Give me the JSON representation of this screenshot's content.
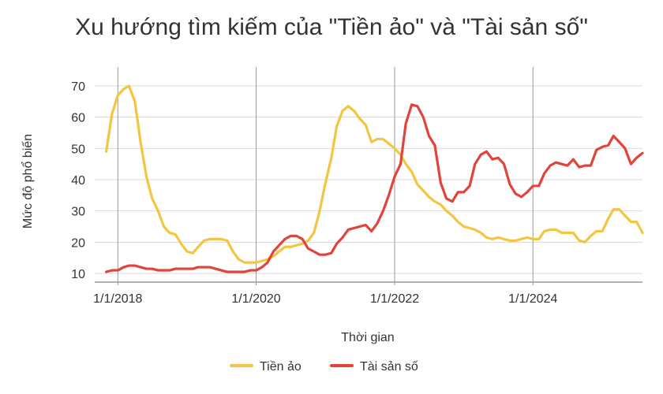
{
  "chart_data": {
    "type": "line",
    "title": "Xu hướng tìm kiếm của \"Tiền ảo\" và \"Tài sản số\"",
    "xlabel": "Thời gian",
    "ylabel": "Mức độ phổ biến",
    "ylim": [
      10,
      70
    ],
    "yticks": [
      "10",
      "20",
      "30",
      "40",
      "50",
      "60",
      "70"
    ],
    "xticks": [
      "1/1/2018",
      "1/1/2020",
      "1/1/2022",
      "1/1/2024"
    ],
    "grid": "horizontal",
    "legend": "bottom",
    "series": [
      {
        "name": "Tiền ảo",
        "color": "#F4C542",
        "points": [
          [
            "2017-11-01",
            49
          ],
          [
            "2017-12-01",
            61
          ],
          [
            "2018-01-01",
            67
          ],
          [
            "2018-02-01",
            69
          ],
          [
            "2018-03-01",
            70
          ],
          [
            "2018-04-01",
            65
          ],
          [
            "2018-05-01",
            52
          ],
          [
            "2018-06-01",
            41
          ],
          [
            "2018-07-01",
            34
          ],
          [
            "2018-08-01",
            30
          ],
          [
            "2018-09-01",
            25
          ],
          [
            "2018-10-01",
            23
          ],
          [
            "2018-11-01",
            22.5
          ],
          [
            "2018-12-01",
            19.5
          ],
          [
            "2019-01-01",
            17
          ],
          [
            "2019-02-01",
            16.5
          ],
          [
            "2019-03-01",
            18.5
          ],
          [
            "2019-04-01",
            20.5
          ],
          [
            "2019-05-01",
            21
          ],
          [
            "2019-06-01",
            21
          ],
          [
            "2019-07-01",
            21
          ],
          [
            "2019-08-01",
            20.5
          ],
          [
            "2019-09-01",
            17
          ],
          [
            "2019-10-01",
            14.5
          ],
          [
            "2019-11-01",
            13.5
          ],
          [
            "2019-12-01",
            13.5
          ],
          [
            "2020-01-01",
            13.5
          ],
          [
            "2020-02-01",
            14
          ],
          [
            "2020-03-01",
            14.5
          ],
          [
            "2020-04-01",
            15.5
          ],
          [
            "2020-05-01",
            17
          ],
          [
            "2020-06-01",
            18.5
          ],
          [
            "2020-07-01",
            18.5
          ],
          [
            "2020-08-01",
            19
          ],
          [
            "2020-09-01",
            19.5
          ],
          [
            "2020-10-01",
            20.5
          ],
          [
            "2020-11-01",
            23
          ],
          [
            "2020-12-01",
            30
          ],
          [
            "2021-01-01",
            39
          ],
          [
            "2021-02-01",
            47
          ],
          [
            "2021-03-01",
            57
          ],
          [
            "2021-04-01",
            62
          ],
          [
            "2021-05-01",
            63.5
          ],
          [
            "2021-06-01",
            62
          ],
          [
            "2021-07-01",
            59.5
          ],
          [
            "2021-08-01",
            57.5
          ],
          [
            "2021-09-01",
            52
          ],
          [
            "2021-10-01",
            53
          ],
          [
            "2021-11-01",
            53
          ],
          [
            "2021-12-01",
            51.5
          ],
          [
            "2022-01-01",
            50
          ],
          [
            "2022-02-01",
            48
          ],
          [
            "2022-03-01",
            45
          ],
          [
            "2022-04-01",
            42.5
          ],
          [
            "2022-05-01",
            38.5
          ],
          [
            "2022-06-01",
            36.5
          ],
          [
            "2022-07-01",
            34.5
          ],
          [
            "2022-08-01",
            33
          ],
          [
            "2022-09-01",
            32
          ],
          [
            "2022-10-01",
            30
          ],
          [
            "2022-11-01",
            28.5
          ],
          [
            "2022-12-01",
            26.5
          ],
          [
            "2023-01-01",
            25
          ],
          [
            "2023-02-01",
            24.5
          ],
          [
            "2023-03-01",
            24
          ],
          [
            "2023-04-01",
            23
          ],
          [
            "2023-05-01",
            21.5
          ],
          [
            "2023-06-01",
            21
          ],
          [
            "2023-07-01",
            21.5
          ],
          [
            "2023-08-01",
            21
          ],
          [
            "2023-09-01",
            20.5
          ],
          [
            "2023-10-01",
            20.5
          ],
          [
            "2023-11-01",
            21
          ],
          [
            "2023-12-01",
            21.5
          ],
          [
            "2024-01-01",
            21
          ],
          [
            "2024-02-01",
            21
          ],
          [
            "2024-03-01",
            23.5
          ],
          [
            "2024-04-01",
            24
          ],
          [
            "2024-05-01",
            24
          ],
          [
            "2024-06-01",
            23
          ],
          [
            "2024-07-01",
            23
          ],
          [
            "2024-08-01",
            23
          ],
          [
            "2024-09-01",
            20.5
          ],
          [
            "2024-10-01",
            20
          ],
          [
            "2024-11-01",
            22
          ],
          [
            "2024-12-01",
            23.5
          ],
          [
            "2025-01-01",
            23.5
          ],
          [
            "2025-02-01",
            27.5
          ],
          [
            "2025-03-01",
            30.5
          ],
          [
            "2025-04-01",
            30.5
          ],
          [
            "2025-05-01",
            28.5
          ],
          [
            "2025-06-01",
            26.5
          ],
          [
            "2025-07-01",
            26.5
          ],
          [
            "2025-08-01",
            23
          ]
        ]
      },
      {
        "name": "Tài sản số",
        "color": "#E0443A",
        "points": [
          [
            "2017-11-01",
            10.5
          ],
          [
            "2017-12-01",
            11
          ],
          [
            "2018-01-01",
            11
          ],
          [
            "2018-02-01",
            12
          ],
          [
            "2018-03-01",
            12.5
          ],
          [
            "2018-04-01",
            12.5
          ],
          [
            "2018-05-01",
            12
          ],
          [
            "2018-06-01",
            11.5
          ],
          [
            "2018-07-01",
            11.5
          ],
          [
            "2018-08-01",
            11
          ],
          [
            "2018-09-01",
            11
          ],
          [
            "2018-10-01",
            11
          ],
          [
            "2018-11-01",
            11.5
          ],
          [
            "2018-12-01",
            11.5
          ],
          [
            "2019-01-01",
            11.5
          ],
          [
            "2019-02-01",
            11.5
          ],
          [
            "2019-03-01",
            12
          ],
          [
            "2019-04-01",
            12
          ],
          [
            "2019-05-01",
            12
          ],
          [
            "2019-06-01",
            11.5
          ],
          [
            "2019-07-01",
            11
          ],
          [
            "2019-08-01",
            10.5
          ],
          [
            "2019-09-01",
            10.5
          ],
          [
            "2019-10-01",
            10.5
          ],
          [
            "2019-11-01",
            10.5
          ],
          [
            "2019-12-01",
            11
          ],
          [
            "2020-01-01",
            11
          ],
          [
            "2020-02-01",
            12
          ],
          [
            "2020-03-01",
            13.5
          ],
          [
            "2020-04-01",
            17
          ],
          [
            "2020-05-01",
            19
          ],
          [
            "2020-06-01",
            21
          ],
          [
            "2020-07-01",
            22
          ],
          [
            "2020-08-01",
            22
          ],
          [
            "2020-09-01",
            21
          ],
          [
            "2020-10-01",
            18
          ],
          [
            "2020-11-01",
            17
          ],
          [
            "2020-12-01",
            16
          ],
          [
            "2021-01-01",
            16
          ],
          [
            "2021-02-01",
            16.5
          ],
          [
            "2021-03-01",
            19.5
          ],
          [
            "2021-04-01",
            21.5
          ],
          [
            "2021-05-01",
            24
          ],
          [
            "2021-06-01",
            24.5
          ],
          [
            "2021-07-01",
            25
          ],
          [
            "2021-08-01",
            25.5
          ],
          [
            "2021-09-01",
            23.5
          ],
          [
            "2021-10-01",
            26
          ],
          [
            "2021-11-01",
            30
          ],
          [
            "2021-12-01",
            35
          ],
          [
            "2022-01-01",
            41
          ],
          [
            "2022-02-01",
            45
          ],
          [
            "2022-03-01",
            58
          ],
          [
            "2022-04-01",
            64
          ],
          [
            "2022-05-01",
            63.5
          ],
          [
            "2022-06-01",
            60
          ],
          [
            "2022-07-01",
            54
          ],
          [
            "2022-08-01",
            51
          ],
          [
            "2022-09-01",
            39
          ],
          [
            "2022-10-01",
            34
          ],
          [
            "2022-11-01",
            33
          ],
          [
            "2022-12-01",
            36
          ],
          [
            "2023-01-01",
            36
          ],
          [
            "2023-02-01",
            38
          ],
          [
            "2023-03-01",
            45
          ],
          [
            "2023-04-01",
            48
          ],
          [
            "2023-05-01",
            49
          ],
          [
            "2023-06-01",
            46.5
          ],
          [
            "2023-07-01",
            47
          ],
          [
            "2023-08-01",
            45
          ],
          [
            "2023-09-01",
            38.5
          ],
          [
            "2023-10-01",
            35.5
          ],
          [
            "2023-11-01",
            34.5
          ],
          [
            "2023-12-01",
            36
          ],
          [
            "2024-01-01",
            38
          ],
          [
            "2024-02-01",
            38
          ],
          [
            "2024-03-01",
            42
          ],
          [
            "2024-04-01",
            44.5
          ],
          [
            "2024-05-01",
            45.5
          ],
          [
            "2024-06-01",
            45
          ],
          [
            "2024-07-01",
            44.5
          ],
          [
            "2024-08-01",
            46.5
          ],
          [
            "2024-09-01",
            44
          ],
          [
            "2024-10-01",
            44.5
          ],
          [
            "2024-11-01",
            44.5
          ],
          [
            "2024-12-01",
            49.5
          ],
          [
            "2025-01-01",
            50.5
          ],
          [
            "2025-02-01",
            51
          ],
          [
            "2025-03-01",
            54
          ],
          [
            "2025-04-01",
            52
          ],
          [
            "2025-05-01",
            50
          ],
          [
            "2025-06-01",
            45
          ],
          [
            "2025-07-01",
            47
          ],
          [
            "2025-08-01",
            48.5
          ]
        ]
      }
    ]
  }
}
